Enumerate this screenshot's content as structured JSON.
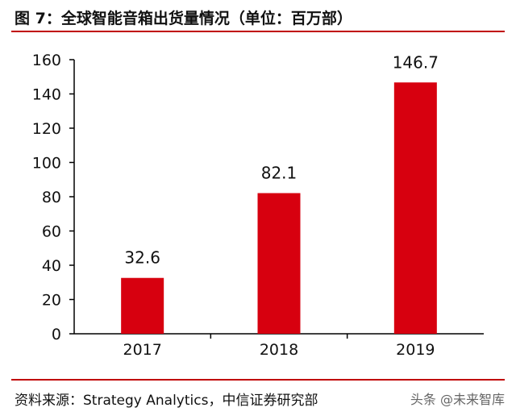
{
  "figure": {
    "title": "图 7：全球智能音箱出货量情况（单位：百万部）",
    "source": "资料来源：Strategy Analytics，中信证券研究部",
    "watermark": "头条 @未来智库"
  },
  "colors": {
    "bar": "#d7000f",
    "rule": "#c00000",
    "axis": "#000000"
  },
  "chart_data": {
    "type": "bar",
    "categories": [
      "2017",
      "2018",
      "2019"
    ],
    "values": [
      32.6,
      82.1,
      146.7
    ],
    "data_labels": [
      "32.6",
      "82.1",
      "146.7"
    ],
    "title": "图 7：全球智能音箱出货量情况（单位：百万部）",
    "xlabel": "",
    "ylabel": "",
    "ylim": [
      0,
      160
    ],
    "yticks": [
      0,
      20,
      40,
      60,
      80,
      100,
      120,
      140,
      160
    ],
    "grid": false,
    "legend": "none"
  }
}
